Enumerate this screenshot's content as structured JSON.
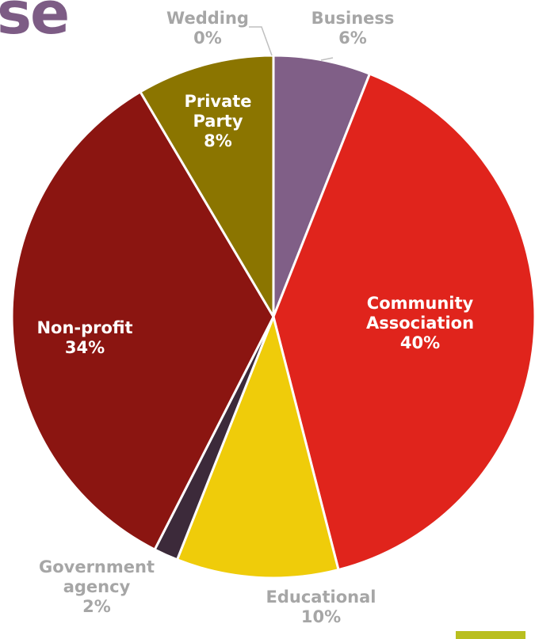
{
  "heading_fragment": "se",
  "chart_data": {
    "type": "pie",
    "slices": [
      {
        "label": "Wedding",
        "value": 0,
        "value_label": "0%",
        "color": "#a6a6a6",
        "label_lines": [
          "Wedding",
          "0%"
        ]
      },
      {
        "label": "Business",
        "value": 6,
        "value_label": "6%",
        "color": "#805f87",
        "label_lines": [
          "Business",
          "6%"
        ]
      },
      {
        "label": "Community Association",
        "value": 40,
        "value_label": "40%",
        "color": "#e0241c",
        "label_lines": [
          "Community",
          "Association",
          "40%"
        ]
      },
      {
        "label": "Educational",
        "value": 10,
        "value_label": "10%",
        "color": "#efcc0a",
        "label_lines": [
          "Educational",
          "10%"
        ]
      },
      {
        "label": "Government agency",
        "value": 1.5,
        "value_label": "2%",
        "color": "#3c2a3a",
        "label_lines": [
          "Government",
          "agency",
          "2%"
        ]
      },
      {
        "label": "Non-profit",
        "value": 34,
        "value_label": "34%",
        "color": "#8b1511",
        "label_lines": [
          "Non-profit",
          "34%"
        ]
      },
      {
        "label": "Private Party",
        "value": 8.5,
        "value_label": "8%",
        "color": "#8b7500",
        "label_lines": [
          "Private",
          "Party",
          "8%"
        ]
      }
    ],
    "label_color_outside": "#a6a6a6",
    "label_color_inside": "#ffffff"
  },
  "accent_bar_color": "#b9bf1f"
}
